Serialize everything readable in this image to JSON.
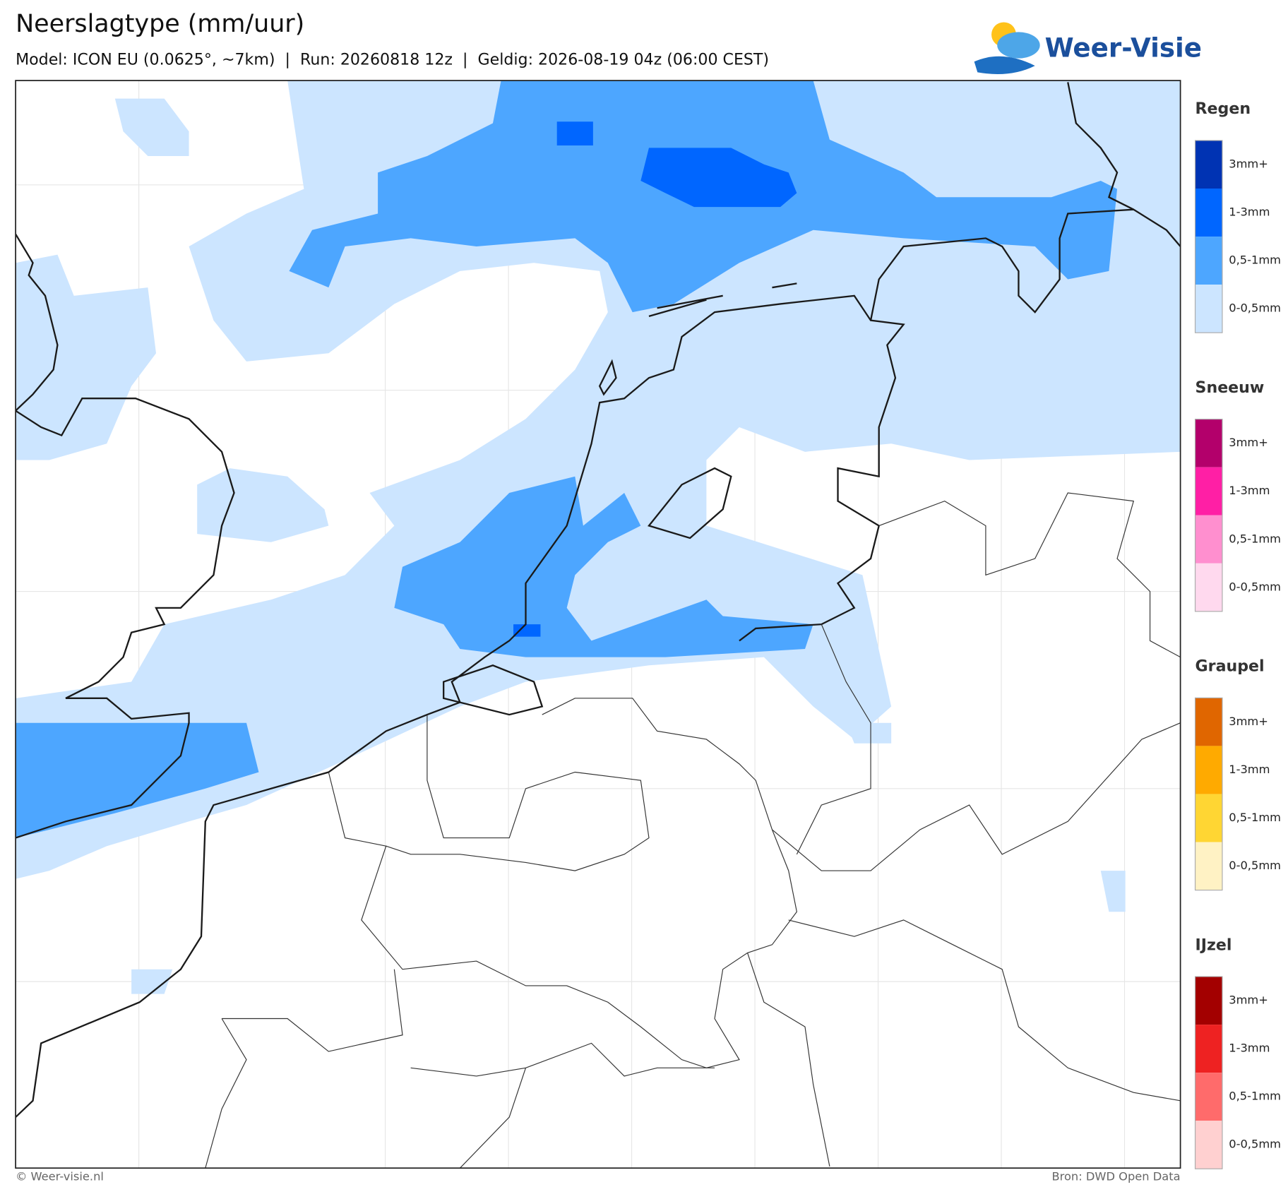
{
  "header": {
    "title": "Neerslagtype (mm/uur)",
    "subtitle": "Model: ICON EU (0.0625°, ~7km)  |  Run: 20260818 12z  |  Geldig: 2026-08-19 04z (06:00 CEST)",
    "logo": "Weer-Visie"
  },
  "legend": [
    {
      "title": "Regen",
      "items": [
        {
          "label": "3mm+",
          "color": "#0033b3"
        },
        {
          "label": "1-3mm",
          "color": "#0066ff"
        },
        {
          "label": "0,5-1mm",
          "color": "#4da6ff"
        },
        {
          "label": "0-0,5mm",
          "color": "#cce5ff"
        }
      ]
    },
    {
      "title": "Sneeuw",
      "items": [
        {
          "label": "3mm+",
          "color": "#b3006b"
        },
        {
          "label": "1-3mm",
          "color": "#ff1fa5"
        },
        {
          "label": "0,5-1mm",
          "color": "#ff8fcf"
        },
        {
          "label": "0-0,5mm",
          "color": "#ffd9ee"
        }
      ]
    },
    {
      "title": "Graupel",
      "items": [
        {
          "label": "3mm+",
          "color": "#e06600"
        },
        {
          "label": "1-3mm",
          "color": "#ffaa00"
        },
        {
          "label": "0,5-1mm",
          "color": "#ffd633"
        },
        {
          "label": "0-0,5mm",
          "color": "#fff2c4"
        }
      ]
    },
    {
      "title": "IJzel",
      "items": [
        {
          "label": "3mm+",
          "color": "#a30000"
        },
        {
          "label": "1-3mm",
          "color": "#ee2222"
        },
        {
          "label": "0,5-1mm",
          "color": "#ff6b6b"
        },
        {
          "label": "0-0,5mm",
          "color": "#ffd0d0"
        }
      ]
    }
  ],
  "footer": {
    "left": "© Weer-visie.nl",
    "right": "Bron: DWD Open Data"
  }
}
